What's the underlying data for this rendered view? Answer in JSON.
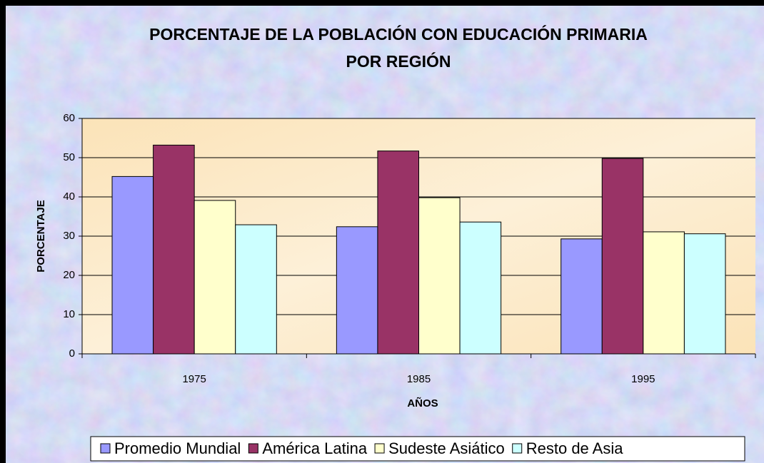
{
  "chart_data": {
    "type": "bar",
    "title": [
      "PORCENTAJE DE LA POBLACIÓN CON EDUCACIÓN PRIMARIA",
      "POR REGIÓN"
    ],
    "x_label": "AÑOS",
    "y_label": "PORCENTAJE",
    "categories": [
      "1975",
      "1985",
      "1995"
    ],
    "series": [
      {
        "name": "Promedio Mundial",
        "color": "#9999ff",
        "values": [
          45.2,
          32.4,
          29.3
        ]
      },
      {
        "name": "América Latina",
        "color": "#993366",
        "values": [
          53.2,
          51.7,
          49.8
        ]
      },
      {
        "name": "Sudeste Asiático",
        "color": "#ffffcc",
        "values": [
          39.1,
          39.8,
          31.1
        ]
      },
      {
        "name": "Resto de Asia",
        "color": "#ccffff",
        "values": [
          32.9,
          33.6,
          30.6
        ]
      }
    ],
    "ylim": [
      0,
      60
    ],
    "yticks": [
      0,
      10,
      20,
      30,
      40,
      50,
      60
    ],
    "grid": true,
    "legend": "bottom"
  }
}
